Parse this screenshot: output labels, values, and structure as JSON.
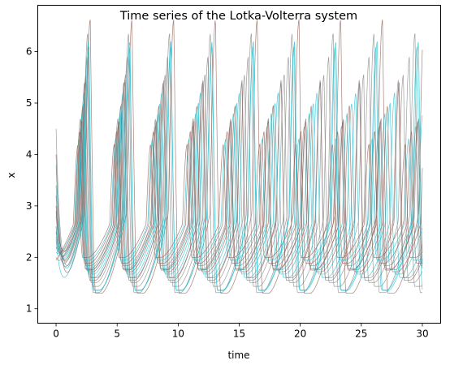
{
  "chart_data": {
    "type": "line",
    "title": "Time series of the Lotka-Volterra system",
    "xlabel": "time",
    "ylabel": "x",
    "xlim": [
      -1.5,
      31.5
    ],
    "ylim": [
      0.72,
      6.9
    ],
    "x_ticks": [
      0,
      5,
      10,
      15,
      20,
      25,
      30
    ],
    "y_ticks": [
      1,
      2,
      3,
      4,
      5,
      6
    ],
    "grid": false,
    "legend": "none",
    "series_colors": [
      "#7f7f7f",
      "#8c564b",
      "#17becf"
    ],
    "line_opacity": 0.75,
    "series": [
      {
        "x0": 4.5,
        "peak": 6.35,
        "trough": 1.05,
        "period": 3.35,
        "first_peak_t": 2.6
      },
      {
        "x0": 4.0,
        "peak": 6.62,
        "trough": 1.02,
        "period": 3.42,
        "first_peak_t": 2.8
      },
      {
        "x0": 3.8,
        "peak": 6.2,
        "trough": 1.1,
        "period": 3.38,
        "first_peak_t": 2.65
      },
      {
        "x0": 3.4,
        "peak": 5.55,
        "trough": 1.3,
        "period": 3.25,
        "first_peak_t": 2.45
      },
      {
        "x0": 3.0,
        "peak": 5.4,
        "trough": 1.35,
        "period": 3.22,
        "first_peak_t": 2.35
      },
      {
        "x0": 2.8,
        "peak": 5.2,
        "trough": 1.42,
        "period": 3.18,
        "first_peak_t": 2.3
      },
      {
        "x0": 2.6,
        "peak": 5.45,
        "trough": 1.4,
        "period": 3.2,
        "first_peak_t": 2.45
      },
      {
        "x0": 2.5,
        "peak": 4.95,
        "trough": 1.55,
        "period": 3.12,
        "first_peak_t": 2.2
      },
      {
        "x0": 2.4,
        "peak": 4.8,
        "trough": 1.6,
        "period": 3.1,
        "first_peak_t": 2.15
      },
      {
        "x0": 2.3,
        "peak": 4.55,
        "trough": 1.7,
        "period": 3.05,
        "first_peak_t": 2.05
      },
      {
        "x0": 2.2,
        "peak": 4.45,
        "trough": 1.75,
        "period": 3.02,
        "first_peak_t": 1.95
      },
      {
        "x0": 2.1,
        "peak": 4.3,
        "trough": 1.82,
        "period": 3.0,
        "first_peak_t": 1.9
      },
      {
        "x0": 2.0,
        "peak": 4.7,
        "trough": 1.62,
        "period": 3.08,
        "first_peak_t": 2.0
      },
      {
        "x0": 1.95,
        "peak": 4.2,
        "trough": 1.88,
        "period": 2.98,
        "first_peak_t": 1.8
      },
      {
        "x0": 2.6,
        "peak": 5.0,
        "trough": 1.5,
        "period": 3.14,
        "first_peak_t": 2.25
      },
      {
        "x0": 3.2,
        "peak": 5.9,
        "trough": 1.2,
        "period": 3.3,
        "first_peak_t": 2.55
      },
      {
        "x0": 2.9,
        "peak": 4.65,
        "trough": 1.6,
        "period": 3.06,
        "first_peak_t": 2.1
      },
      {
        "x0": 2.35,
        "peak": 6.1,
        "trough": 1.12,
        "period": 3.36,
        "first_peak_t": 2.7
      }
    ]
  }
}
